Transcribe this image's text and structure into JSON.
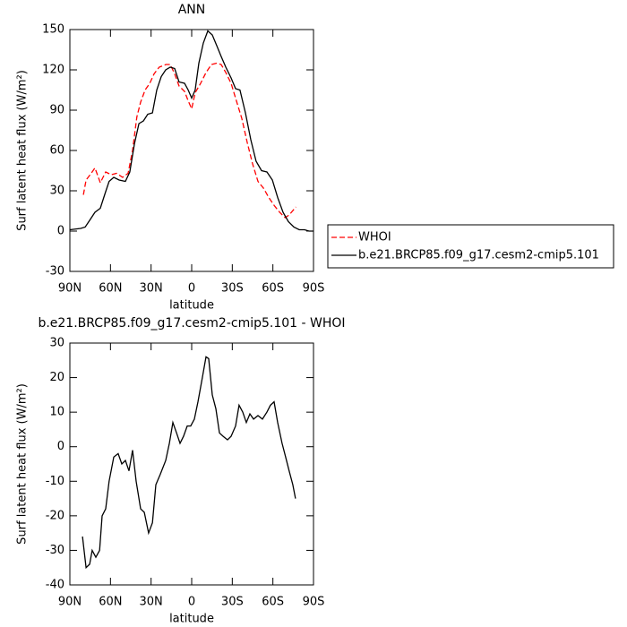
{
  "chart_data": [
    {
      "type": "line",
      "title": "ANN",
      "xlabel": "latitude",
      "ylabel": "Surf latent heat flux (W/m²)",
      "xlim": [
        90,
        -90
      ],
      "xticks": [
        {
          "value": 90,
          "label": "90N"
        },
        {
          "value": 60,
          "label": "60N"
        },
        {
          "value": 30,
          "label": "30N"
        },
        0,
        {
          "value": -30,
          "label": "30S"
        },
        {
          "value": -60,
          "label": "60S"
        },
        {
          "value": -90,
          "label": "90S"
        }
      ],
      "ylim": [
        -30,
        150
      ],
      "yticks": [
        -30,
        0,
        30,
        60,
        90,
        120,
        150
      ],
      "legend": "outside-right",
      "series": [
        {
          "name": "WHOI",
          "color": "#ff0000",
          "dash": true,
          "x": [
            80,
            78,
            75,
            71.5,
            67.5,
            63.5,
            59.5,
            55.5,
            51,
            47,
            43.7,
            40.5,
            37.7,
            34.4,
            31,
            27.8,
            24,
            19,
            15.8,
            12.6,
            9.3,
            5.3,
            2.6,
            0,
            -2.6,
            -6.6,
            -10.6,
            -14.6,
            -18.5,
            -21.8,
            -25.2,
            -29.1,
            -33,
            -37,
            -41,
            -45,
            -49,
            -53,
            -57,
            -61,
            -65,
            -69,
            -72,
            -77
          ],
          "values": [
            27,
            38,
            42,
            47,
            36,
            44,
            42,
            43,
            40,
            43,
            60,
            85,
            96,
            105,
            110,
            117,
            122,
            124,
            124,
            117,
            108,
            104,
            97,
            91,
            103,
            110,
            118,
            124,
            125,
            124,
            118,
            110,
            97,
            84,
            66,
            50,
            37,
            32,
            25,
            19,
            14,
            10,
            12,
            18
          ]
        },
        {
          "name": "b.e21.BRCP85.f09_g17.cesm2-cmip5.101",
          "color": "#000000",
          "dash": false,
          "x": [
            90,
            82,
            78.7,
            75.4,
            71.5,
            67.5,
            64,
            61,
            57.6,
            53.6,
            49,
            45.7,
            42.3,
            39,
            35.7,
            32.4,
            29,
            25.8,
            22.5,
            19.2,
            15.8,
            12.6,
            9.3,
            5.3,
            2.6,
            0,
            -2.6,
            -5.3,
            -8.6,
            -11.9,
            -15.2,
            -18.5,
            -21.8,
            -25.2,
            -29.1,
            -32.4,
            -35.7,
            -39.7,
            -43.7,
            -47.6,
            -51.6,
            -55.6,
            -59.6,
            -63.5,
            -67.5,
            -71.5,
            -75.5,
            -79.5,
            -83.4,
            -86.7,
            -90
          ],
          "values": [
            1,
            2,
            3,
            8,
            14,
            17,
            28,
            37,
            40,
            38,
            37,
            44,
            65,
            80,
            82,
            87,
            88,
            105,
            115,
            120,
            122,
            121,
            111,
            110,
            105,
            99,
            105,
            125,
            140,
            149,
            146,
            138,
            130,
            122,
            114,
            106,
            105,
            88,
            68,
            52,
            45,
            44,
            38,
            25,
            14,
            7,
            3,
            1,
            1,
            0,
            0
          ]
        }
      ]
    },
    {
      "type": "line",
      "title": "b.e21.BRCP85.f09_g17.cesm2-cmip5.101 - WHOI",
      "xlabel": "latitude",
      "ylabel": "Surf latent heat flux (W/m²)",
      "xlim": [
        90,
        -90
      ],
      "xticks": [
        {
          "value": 90,
          "label": "90N"
        },
        {
          "value": 60,
          "label": "60N"
        },
        {
          "value": 30,
          "label": "30N"
        },
        0,
        {
          "value": -30,
          "label": "30S"
        },
        {
          "value": -60,
          "label": "60S"
        },
        {
          "value": -90,
          "label": "90S"
        }
      ],
      "ylim": [
        -40,
        30
      ],
      "yticks": [
        -40,
        -30,
        -20,
        -10,
        0,
        10,
        20,
        30
      ],
      "series": [
        {
          "color": "#000000",
          "dash": false,
          "x": [
            80.7,
            78,
            75.4,
            73.5,
            70.8,
            68,
            66.2,
            63.5,
            61,
            57.6,
            54.3,
            51.6,
            49,
            46.3,
            43.7,
            41,
            37.7,
            35,
            31.8,
            29,
            26.5,
            23.2,
            19.2,
            16.5,
            13.9,
            11.2,
            8.6,
            6,
            3.3,
            0.7,
            -2,
            -4.6,
            -7.9,
            -10.6,
            -12.6,
            -15.2,
            -17.9,
            -20.5,
            -23.2,
            -26.5,
            -29.1,
            -32.4,
            -35,
            -37.7,
            -40.4,
            -43,
            -45.7,
            -49,
            -52.3,
            -55.6,
            -58.2,
            -60.9,
            -63.5,
            -66.8,
            -69.4,
            -72,
            -74.7,
            -76.7
          ],
          "values": [
            -26,
            -35,
            -34,
            -30,
            -32,
            -30,
            -20,
            -18,
            -10,
            -3,
            -2,
            -5,
            -4,
            -7,
            -1,
            -10,
            -18,
            -19,
            -25,
            -22,
            -11,
            -8,
            -4,
            1,
            7,
            4,
            1,
            3,
            6,
            6,
            8,
            13,
            20,
            26,
            25.5,
            15,
            11,
            4,
            3,
            2,
            3,
            6,
            12,
            10,
            7,
            9.5,
            8,
            9,
            8,
            10,
            12,
            13,
            7,
            1,
            -3,
            -7,
            -11,
            -15
          ]
        }
      ]
    }
  ]
}
